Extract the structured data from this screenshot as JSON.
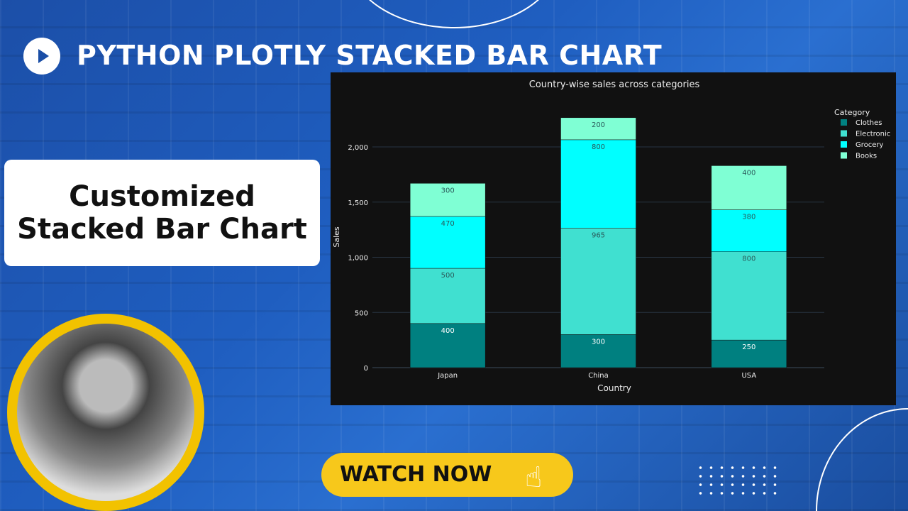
{
  "thumbnail": {
    "title": "PYTHON PLOTLY STACKED BAR CHART",
    "card_line1": "Customized",
    "card_line2": "Stacked Bar Chart",
    "cta": "WATCH NOW",
    "icons": [
      "play-icon",
      "pointer-hand-icon"
    ]
  },
  "chart_data": {
    "type": "bar",
    "barmode": "stack",
    "title": "Country-wise sales across categories",
    "xlabel": "Country",
    "ylabel": "Sales",
    "categories": [
      "Japan",
      "China",
      "USA"
    ],
    "ylim": [
      0,
      2300
    ],
    "yticks": [
      0,
      500,
      1000,
      1500,
      2000
    ],
    "ytick_labels": [
      "0",
      "500",
      "1,000",
      "1,500",
      "2,000"
    ],
    "grid": true,
    "legend_title": "Category",
    "legend_position": "top-right",
    "series": [
      {
        "name": "Clothes",
        "values": [
          400,
          300,
          250
        ],
        "color": "#008080"
      },
      {
        "name": "Electronic",
        "values": [
          500,
          965,
          800
        ],
        "color": "#40E0D0"
      },
      {
        "name": "Grocery",
        "values": [
          470,
          800,
          380
        ],
        "color": "#00FFFF"
      },
      {
        "name": "Books",
        "values": [
          300,
          200,
          400
        ],
        "color": "#7FFFD4"
      }
    ]
  }
}
